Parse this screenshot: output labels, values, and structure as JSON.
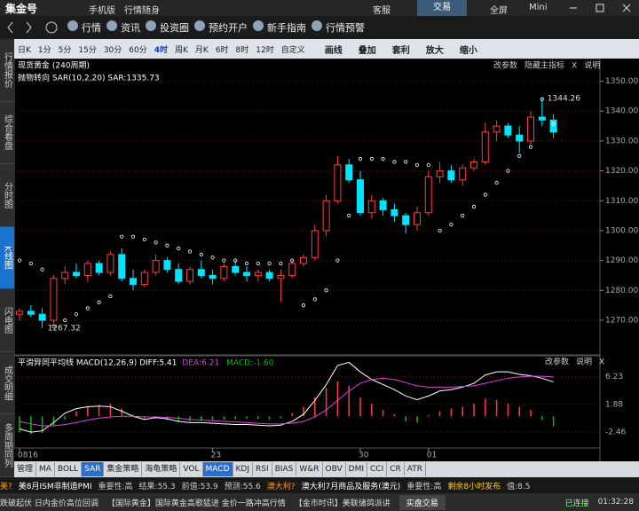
{
  "titlebar": {
    "logo": "集金号",
    "mobile": "手机版",
    "slogan": "行情随身",
    "service": "客服",
    "trade": "交易",
    "fullscreen": "全屏",
    "mini": "Mini"
  },
  "toolbar": [
    "行情",
    "资讯",
    "投资圈",
    "预约开户",
    "新手指南",
    "行情预警"
  ],
  "periods": [
    "日K",
    "1分",
    "5分",
    "15分",
    "30分",
    "60分",
    "4时",
    "周K",
    "月K",
    "6时",
    "8时",
    "12时",
    "自定义"
  ],
  "active_period": 6,
  "tools": [
    "画线",
    "叠加",
    "套利",
    "放大",
    "缩小"
  ],
  "sidebar": [
    "行情报价",
    "综合看盘",
    "分时图",
    "K线图",
    "闪电图",
    "成交明细",
    "多周期同列"
  ],
  "active_sidebar": 3,
  "chart_data": {
    "type": "candlestick",
    "title": "现货黄金 (240周期)",
    "indicator": "抛物转向 SAR(10,2,20) SAR:1335.73",
    "buttons": [
      "改参数",
      "隐藏主指标",
      "X",
      "说明"
    ],
    "categories": [
      "0816",
      null,
      null,
      null,
      null,
      null,
      null,
      null,
      null,
      null,
      null,
      null,
      null,
      null,
      null,
      null,
      null,
      "23",
      null,
      null,
      null,
      null,
      null,
      null,
      null,
      null,
      null,
      null,
      null,
      null,
      "30",
      null,
      null,
      null,
      null,
      null,
      "01",
      null,
      null,
      null,
      null,
      null,
      null,
      null,
      null,
      null,
      null,
      null
    ],
    "candles": [
      [
        1272,
        1274,
        1270,
        1273
      ],
      [
        1273,
        1275,
        1271,
        1272
      ],
      [
        1272,
        1274,
        1267.32,
        1270
      ],
      [
        1270,
        1285,
        1269,
        1284
      ],
      [
        1284,
        1288,
        1282,
        1286
      ],
      [
        1286,
        1289,
        1284,
        1285
      ],
      [
        1285,
        1290,
        1283,
        1289
      ],
      [
        1289,
        1290,
        1285,
        1286
      ],
      [
        1286,
        1293,
        1285,
        1292
      ],
      [
        1292,
        1294,
        1283,
        1284
      ],
      [
        1284,
        1287,
        1280,
        1282
      ],
      [
        1282,
        1287,
        1281,
        1286
      ],
      [
        1286,
        1292,
        1285,
        1290
      ],
      [
        1290,
        1291,
        1286,
        1287
      ],
      [
        1287,
        1289,
        1282,
        1283
      ],
      [
        1283,
        1288,
        1282,
        1287
      ],
      [
        1287,
        1290,
        1284,
        1285
      ],
      [
        1285,
        1287,
        1282,
        1284
      ],
      [
        1284,
        1289,
        1283,
        1288
      ],
      [
        1288,
        1290,
        1285,
        1286
      ],
      [
        1286,
        1288,
        1283,
        1285
      ],
      [
        1285,
        1287,
        1283,
        1286
      ],
      [
        1286,
        1287,
        1283,
        1284
      ],
      [
        1284,
        1287,
        1276,
        1285
      ],
      [
        1285,
        1290,
        1284,
        1289
      ],
      [
        1289,
        1292,
        1288,
        1291
      ],
      [
        1291,
        1302,
        1290,
        1300
      ],
      [
        1300,
        1312,
        1298,
        1310
      ],
      [
        1310,
        1325,
        1309,
        1322
      ],
      [
        1322,
        1324,
        1316,
        1317
      ],
      [
        1317,
        1320,
        1305,
        1306
      ],
      [
        1306,
        1312,
        1304,
        1310
      ],
      [
        1310,
        1311,
        1305,
        1307
      ],
      [
        1307,
        1309,
        1303,
        1305
      ],
      [
        1305,
        1306,
        1299,
        1302
      ],
      [
        1302,
        1308,
        1300,
        1306
      ],
      [
        1306,
        1320,
        1305,
        1318
      ],
      [
        1318,
        1323,
        1316,
        1320
      ],
      [
        1320,
        1322,
        1316,
        1317
      ],
      [
        1317,
        1322,
        1315,
        1321
      ],
      [
        1321,
        1324,
        1320,
        1323
      ],
      [
        1323,
        1336,
        1322,
        1333
      ],
      [
        1333,
        1337,
        1330,
        1335
      ],
      [
        1335,
        1336,
        1331,
        1332
      ],
      [
        1332,
        1335,
        1326,
        1330
      ],
      [
        1330,
        1340,
        1329,
        1338
      ],
      [
        1338,
        1344.26,
        1335,
        1337
      ],
      [
        1337,
        1339,
        1331,
        1333
      ]
    ],
    "sar": [
      1290,
      1289,
      1287,
      1268,
      1270,
      1272,
      1274,
      1276,
      1278,
      1298,
      1298,
      1297,
      1296,
      1295,
      1294,
      1293,
      1292,
      1291,
      1290,
      1290,
      1289,
      1289,
      1289,
      1289,
      1290,
      1275,
      1277,
      1280,
      1290,
      1305,
      1324,
      1324,
      1324,
      1323,
      1323,
      1322,
      1322,
      1300,
      1302,
      1305,
      1308,
      1312,
      1316,
      1320,
      1325,
      1328,
      1344,
      1335.73
    ],
    "high_label": 1344.26,
    "low_label": 1267.32,
    "ylim": [
      1259,
      1357
    ],
    "yticks": [
      {
        "value": 1350,
        "label": "1350.00"
      },
      {
        "value": 1340,
        "label": "1340.00"
      },
      {
        "value": 1330,
        "label": "1330.00"
      },
      {
        "value": 1320,
        "label": "1320.00"
      },
      {
        "value": 1310,
        "label": "1310.00"
      },
      {
        "value": 1300,
        "label": "1300.00"
      },
      {
        "value": 1290,
        "label": "1290.00"
      },
      {
        "value": 1280,
        "label": "1280.00"
      },
      {
        "value": 1270,
        "label": "1270.00"
      }
    ],
    "up_color": "#ff3c3c",
    "down_color": "#00e5ff",
    "sar_color": "#ffffff",
    "grid": true,
    "macd": {
      "title": "平滑异同平均线 MACD(12,26,9) DIFF:5.41",
      "dea_text": "DEA:6.21",
      "macd_text": "MACD:-1.60",
      "buttons": [
        "改参数",
        "说明",
        "X"
      ],
      "hist": [
        -2.5,
        -2.8,
        -2.6,
        -1.5,
        -0.5,
        0.8,
        1.5,
        1.8,
        2.0,
        1.2,
        0.3,
        -0.5,
        -0.4,
        -0.6,
        -0.9,
        -0.8,
        -0.7,
        -0.6,
        -0.5,
        -0.5,
        -0.4,
        -0.4,
        -0.5,
        -0.3,
        0.5,
        1.5,
        3.0,
        4.5,
        5.5,
        4.8,
        3.0,
        2.0,
        1.0,
        0.3,
        -0.8,
        -1.0,
        0.2,
        0.8,
        1.2,
        1.5,
        2.0,
        2.8,
        2.6,
        2.0,
        1.5,
        1.0,
        -0.5,
        -1.6
      ],
      "dif": [
        -2,
        -2.5,
        -2.3,
        -1,
        0.5,
        1.2,
        1.5,
        1.6,
        1.5,
        0.8,
        0,
        -0.5,
        -0.2,
        -0.4,
        -0.8,
        -1,
        -1,
        -1.1,
        -1.2,
        -1.3,
        -1.3,
        -1.4,
        -1.5,
        -1.4,
        -0.8,
        0.3,
        2.5,
        5,
        8,
        8.5,
        7,
        5.8,
        5,
        4.2,
        3.2,
        2.6,
        3.2,
        4,
        4.2,
        4.6,
        5.2,
        6.5,
        7,
        7,
        6.6,
        6.4,
        6,
        5.41
      ],
      "dea": [
        -0.8,
        -1.2,
        -1.5,
        -1.5,
        -1.3,
        -1,
        -0.6,
        -0.3,
        -0.1,
        0,
        0,
        -0.1,
        -0.1,
        -0.2,
        -0.3,
        -0.5,
        -0.6,
        -0.7,
        -0.8,
        -0.9,
        -1,
        -1.1,
        -1.2,
        -1.2,
        -1.1,
        -0.8,
        -0.1,
        1,
        2.5,
        4,
        5.2,
        5.8,
        6,
        5.8,
        5.3,
        4.8,
        4.6,
        4.6,
        4.6,
        4.7,
        4.8,
        5.2,
        5.6,
        6,
        6.2,
        6.3,
        6.3,
        6.21
      ],
      "ylim": [
        -5,
        9.4
      ],
      "yticks": [
        6.23,
        1.88,
        -2.46
      ],
      "dif_color": "#ffffff",
      "dea_color": "#e040e0",
      "pos_color": "#ff3c3c",
      "neg_color": "#00c000"
    }
  },
  "indicator_tabs": [
    "管理",
    "MA",
    "BOLL",
    "SAR",
    "集金策略",
    "海龟策略",
    "VOL",
    "MACD",
    "KDJ",
    "RSI",
    "BIAS",
    "W&R",
    "OBV",
    "DMI",
    "CCI",
    "CR",
    "ATR"
  ],
  "active_tabs": [
    3,
    7
  ],
  "news": [
    "美?",
    "美8月ISM非制造PMI",
    "重要性:高",
    "结果:55.3",
    "前值:53.9",
    "预测:55.6",
    "澳大利?",
    "澳大利7月商品及服务(澳元)",
    "重要性:高",
    "剩余8小时发布",
    "值:8.5"
  ],
  "statusbar": {
    "ticker": [
      "跌破起伏 日内金价高位回调",
      "【国际黄金】国际黄金高歌猛进 金价一路冲高行情",
      "【金市时讯】美联储鸽派讲"
    ],
    "trade": "实盘交易",
    "connection": "已连接",
    "time": "01:32:28"
  }
}
